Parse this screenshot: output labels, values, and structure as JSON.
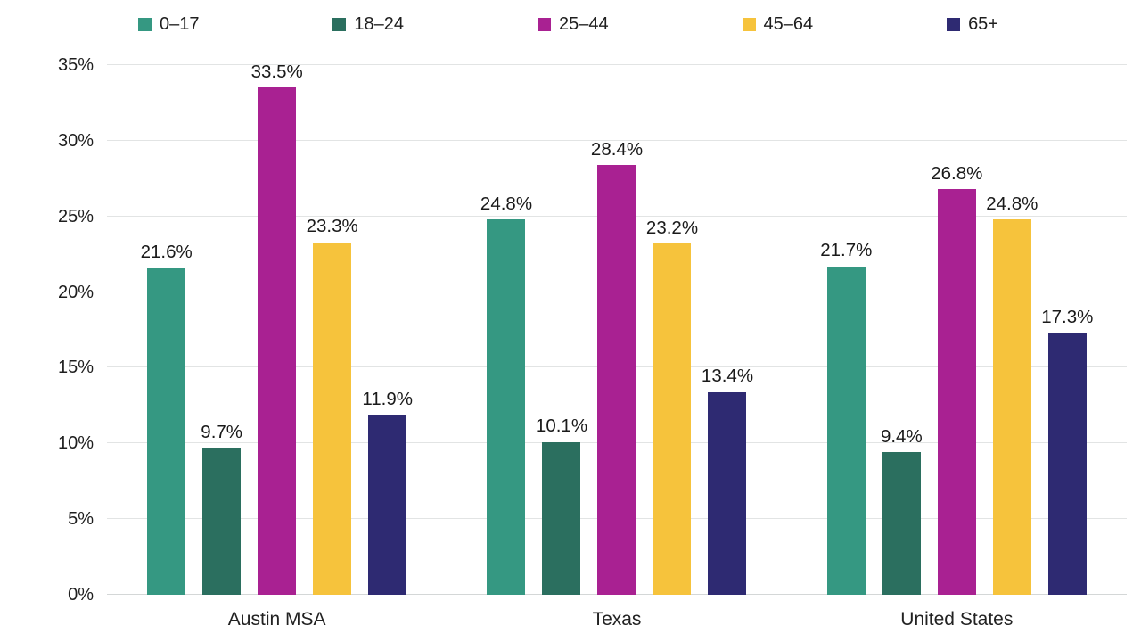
{
  "chart_data": {
    "type": "bar",
    "title": "",
    "categories": [
      "Austin MSA",
      "Texas",
      "United States"
    ],
    "series": [
      {
        "name": "0–17",
        "color": "#359882",
        "values": [
          21.6,
          24.8,
          21.7
        ]
      },
      {
        "name": "18–24",
        "color": "#2B6F5F",
        "values": [
          9.7,
          10.1,
          9.4
        ]
      },
      {
        "name": "25–44",
        "color": "#A92192",
        "values": [
          33.5,
          28.4,
          26.8
        ]
      },
      {
        "name": "45–64",
        "color": "#F6C33C",
        "values": [
          23.3,
          23.2,
          24.8
        ]
      },
      {
        "name": "65+",
        "color": "#2E2A72",
        "values": [
          11.9,
          13.4,
          17.3
        ]
      }
    ],
    "value_suffix": "%",
    "ylim": [
      0,
      35
    ],
    "ytick_step": 5,
    "yticks": [
      "0%",
      "5%",
      "10%",
      "15%",
      "20%",
      "25%",
      "30%",
      "35%"
    ],
    "grid": true,
    "legend_position": "top",
    "data_labels": true,
    "data_label_format": "one-decimal-percent"
  },
  "colors": {
    "background": "#FFFFFF",
    "gridline": "#E2E4E4",
    "axis_line": "#D4D7D7",
    "text": "#1F1F1F"
  }
}
